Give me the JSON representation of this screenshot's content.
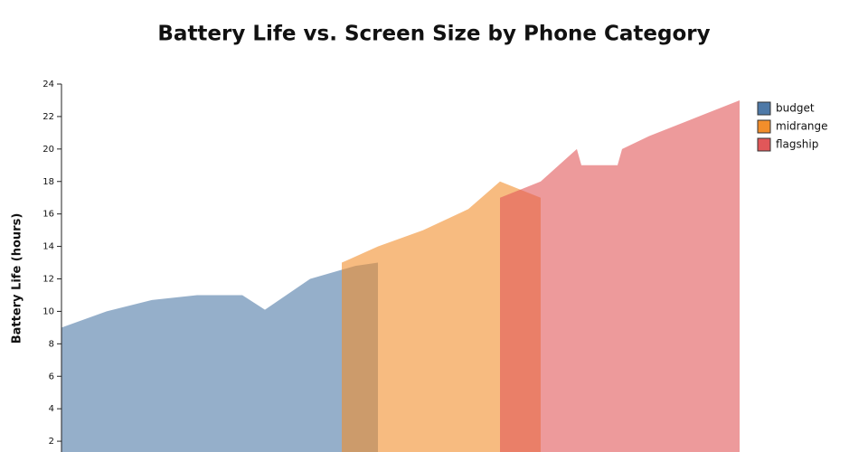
{
  "chart_data": {
    "type": "area",
    "title": "Battery Life vs. Screen Size by Phone Category",
    "y_label": "Battery Life (hours)",
    "xlim": [
      5.0,
      6.5
    ],
    "ylim": [
      0,
      24
    ],
    "yticks": [
      2,
      4,
      6,
      8,
      10,
      12,
      14,
      16,
      18,
      20,
      22,
      24
    ],
    "legend": "top-right",
    "series": [
      {
        "name": "budget",
        "color": "#4e79a7",
        "x": [
          5.0,
          5.1,
          5.2,
          5.3,
          5.4,
          5.45,
          5.55,
          5.65,
          5.7
        ],
        "values": [
          9.0,
          10.0,
          10.7,
          11.0,
          11.0,
          10.1,
          12.0,
          12.8,
          13.0
        ]
      },
      {
        "name": "midrange",
        "color": "#f28e2b",
        "x": [
          5.62,
          5.7,
          5.8,
          5.9,
          5.97,
          6.06
        ],
        "values": [
          13.0,
          14.0,
          15.0,
          16.3,
          18.0,
          17.0
        ]
      },
      {
        "name": "flagship",
        "color": "#e15759",
        "x": [
          5.97,
          6.06,
          6.14,
          6.15,
          6.23,
          6.24,
          6.3,
          6.5
        ],
        "values": [
          17.0,
          18.0,
          20.0,
          19.0,
          19.0,
          20.0,
          20.8,
          23.0
        ]
      }
    ]
  }
}
